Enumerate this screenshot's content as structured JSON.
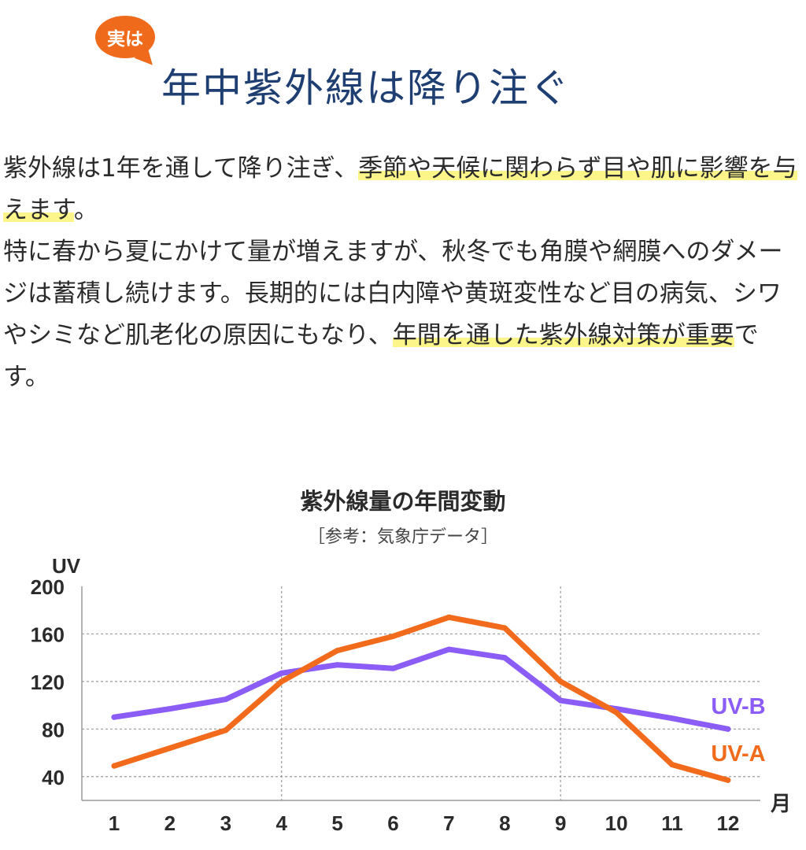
{
  "badge": {
    "label": "実は"
  },
  "headline": "年中紫外線は降り注ぐ",
  "body": {
    "p1": [
      {
        "text": "紫外線は1年を通して降り注ぎ、",
        "highlight": false
      },
      {
        "text": "季節や天候に関わらず目や肌に影響を与えます",
        "highlight": true
      },
      {
        "text": "。",
        "highlight": false
      }
    ],
    "p2": [
      {
        "text": "特に春から夏にかけて量が増えますが、秋冬でも角膜や網膜へのダメージは蓄積し続けます。長期的には白内障や黄斑変性など目の病気、シワやシミなど肌老化の原因にもなり、",
        "highlight": false
      },
      {
        "text": "年間を通した紫外線対策が重要",
        "highlight": true
      },
      {
        "text": "です。",
        "highlight": false
      }
    ]
  },
  "chart_title": "紫外線量の年間変動",
  "chart_source": "［参考：気象庁データ］",
  "chart_data": {
    "type": "line",
    "ylabel": "UV",
    "xlabel": "月",
    "x": [
      "1",
      "2",
      "3",
      "4",
      "5",
      "6",
      "7",
      "8",
      "9",
      "10",
      "11",
      "12"
    ],
    "yticks": [
      "200",
      "160",
      "120",
      "80",
      "40"
    ],
    "ylim": [
      20,
      200
    ],
    "series": [
      {
        "name": "UV-B",
        "color": "#8b5cf6",
        "values": [
          90,
          97,
          105,
          127,
          134,
          131,
          147,
          140,
          104,
          97,
          89,
          80
        ]
      },
      {
        "name": "UV-A",
        "color": "#f26b1d",
        "values": [
          49,
          64,
          79,
          120,
          146,
          158,
          174,
          165,
          120,
          94,
          50,
          37
        ]
      }
    ],
    "grid": "dotted"
  }
}
